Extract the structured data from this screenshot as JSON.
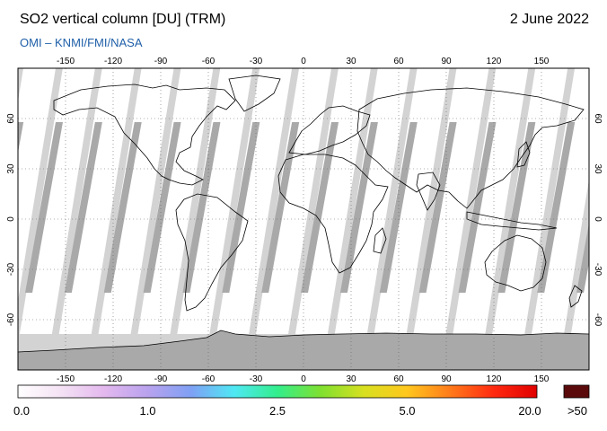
{
  "header": {
    "title": "SO2 vertical column [DU] (TRM)",
    "date": "2 June 2022",
    "subtitle": "OMI  –  KNMI/FMI/NASA"
  },
  "map": {
    "lon_ticks": [
      "-150",
      "-120",
      "-90",
      "-60",
      "-30",
      "0",
      "30",
      "60",
      "90",
      "120",
      "150"
    ],
    "lat_ticks": [
      "60",
      "30",
      "0",
      "-30",
      "-60"
    ],
    "colors": {
      "ocean": "#d3d3d3",
      "swath": "#ffffff",
      "gap": "#a9a9a9",
      "land_outline": "#000000",
      "graticule": "#666666"
    }
  },
  "colorbar": {
    "labels": [
      "0.0",
      "1.0",
      "2.5",
      "5.0",
      "20.0"
    ],
    "overflow_label": ">50",
    "overflow_color": "#5a0a0a",
    "stops": [
      "#ffffff",
      "#f4e2f4",
      "#e3b8ee",
      "#b9a2ee",
      "#7fa0f4",
      "#4fe8f4",
      "#33ee8c",
      "#7fe030",
      "#d8e020",
      "#ffc71f",
      "#ff7a1a",
      "#ff2a10",
      "#e00000"
    ]
  }
}
